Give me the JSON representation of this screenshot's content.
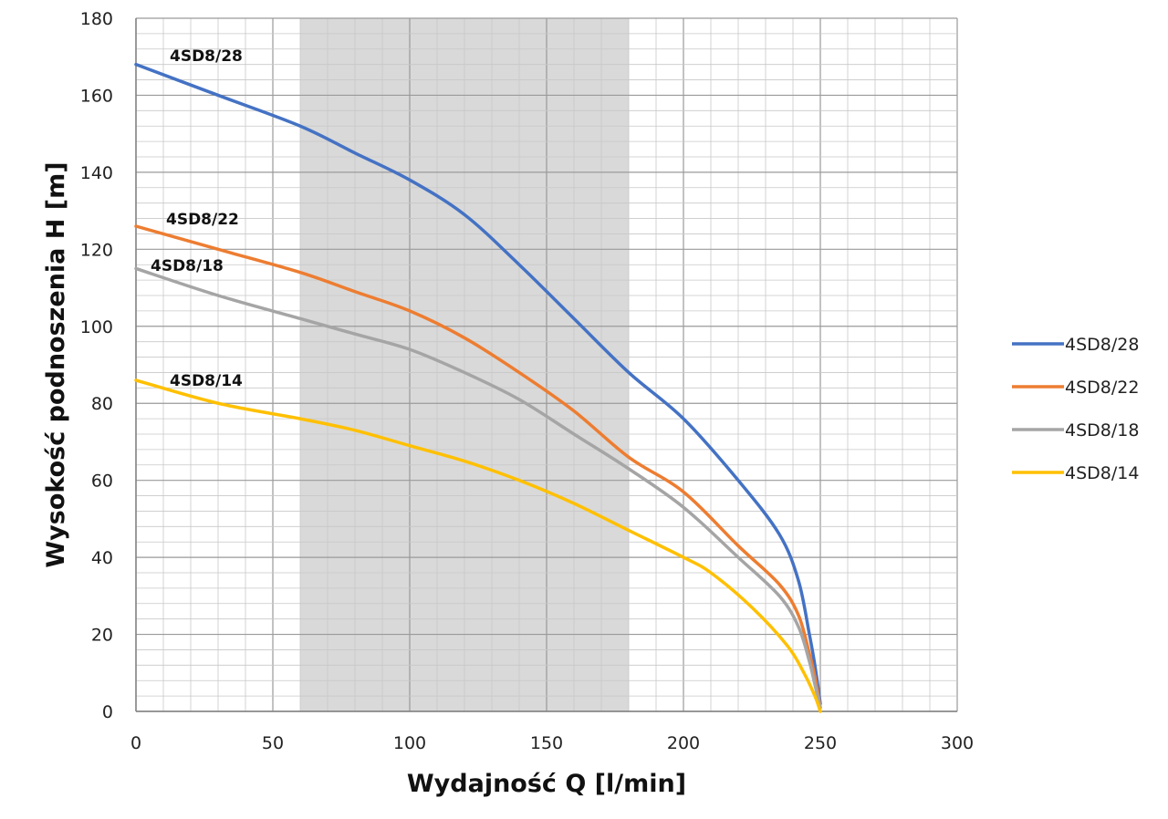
{
  "chart_data": {
    "type": "line",
    "xlabel": "Wydajność Q [l/min]",
    "ylabel": "Wysokość podnoszenia H [m]",
    "xlim": [
      0,
      300
    ],
    "ylim": [
      0,
      180
    ],
    "x_ticks": [
      "0",
      "50",
      "100",
      "150",
      "200",
      "250",
      "300"
    ],
    "y_ticks": [
      "0",
      "20",
      "40",
      "60",
      "80",
      "100",
      "120",
      "140",
      "160",
      "180"
    ],
    "grid": true,
    "legend_position": "right",
    "shaded_range_x": [
      60,
      180
    ],
    "shaded_color": "#d9d9d9",
    "series": [
      {
        "name": "4SD8/28",
        "color": "#4472c4",
        "x": [
          0,
          30,
          60,
          80,
          100,
          120,
          140,
          160,
          180,
          200,
          220,
          235,
          242,
          246,
          248,
          250
        ],
        "y": [
          168,
          160,
          152,
          145,
          138,
          129,
          116,
          102,
          88,
          76,
          60,
          46,
          34,
          20,
          12,
          2
        ]
      },
      {
        "name": "4SD8/22",
        "color": "#ed7d31",
        "x": [
          0,
          30,
          60,
          80,
          100,
          120,
          140,
          160,
          180,
          200,
          220,
          235,
          242,
          246,
          248,
          250
        ],
        "y": [
          126,
          120,
          114,
          109,
          104,
          97,
          88,
          78,
          66,
          57,
          43,
          33,
          25,
          15,
          9,
          1
        ]
      },
      {
        "name": "4SD8/18",
        "color": "#a5a5a5",
        "x": [
          0,
          30,
          60,
          80,
          100,
          120,
          140,
          160,
          180,
          200,
          220,
          235,
          242,
          246,
          248,
          250
        ],
        "y": [
          115,
          108,
          102,
          98,
          94,
          88,
          81,
          72,
          63,
          53,
          40,
          30,
          22,
          13,
          7,
          1
        ]
      },
      {
        "name": "4SD8/14",
        "color": "#ffc000",
        "x": [
          0,
          30,
          60,
          80,
          100,
          120,
          140,
          160,
          180,
          200,
          210,
          225,
          238,
          244,
          248,
          250
        ],
        "y": [
          86,
          80,
          76,
          73,
          69,
          65,
          60,
          54,
          47,
          40,
          36,
          27,
          17,
          10,
          4,
          0
        ]
      }
    ]
  }
}
